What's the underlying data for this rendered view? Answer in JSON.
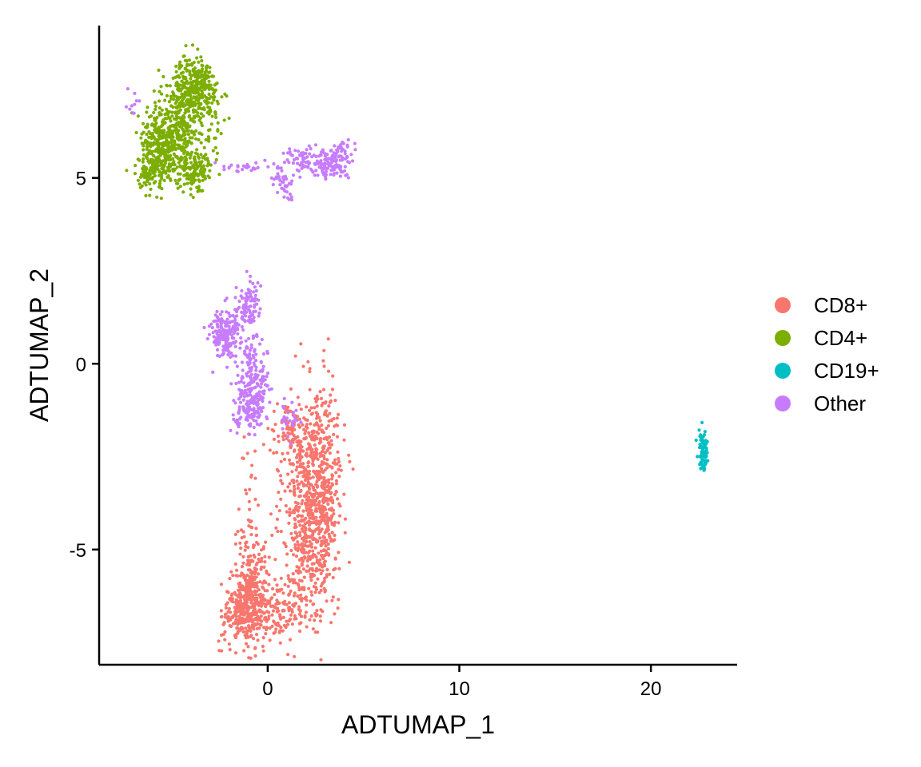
{
  "chart_data": {
    "type": "scatter",
    "title": "",
    "xlabel": "ADTUMAP_1",
    "ylabel": "ADTUMAP_2",
    "xlim": [
      -8.8,
      24.5
    ],
    "ylim": [
      -8.1,
      9.1
    ],
    "x_ticks": [
      0,
      10,
      20
    ],
    "y_ticks": [
      -5,
      0,
      5
    ],
    "x_tick_labels": [
      "0",
      "10",
      "20"
    ],
    "y_tick_labels": [
      "-5",
      "0",
      "5"
    ],
    "grid": false,
    "legend_position": "right",
    "series": [
      {
        "name": "CD8+",
        "color": "#F8766D",
        "clusters": [
          {
            "cx": 2.2,
            "cy": -4.0,
            "sx": 0.7,
            "sy": 1.5,
            "n": 650
          },
          {
            "cx": 3.0,
            "cy": -3.0,
            "sx": 0.45,
            "sy": 1.3,
            "n": 250
          },
          {
            "cx": -1.2,
            "cy": -6.7,
            "sx": 0.55,
            "sy": 0.45,
            "n": 300
          },
          {
            "cx": -0.8,
            "cy": -5.8,
            "sx": 0.45,
            "sy": 0.6,
            "n": 160
          },
          {
            "cx": 0.6,
            "cy": -6.6,
            "sx": 0.8,
            "sy": 0.4,
            "n": 130
          },
          {
            "cx": 1.2,
            "cy": -2.0,
            "sx": 0.45,
            "sy": 0.4,
            "n": 90
          },
          {
            "cx": -1.0,
            "cy": -4.0,
            "sx": 0.25,
            "sy": 1.3,
            "n": 40
          }
        ]
      },
      {
        "name": "CD4+",
        "color": "#7CAE00",
        "clusters": [
          {
            "cx": -5.6,
            "cy": 5.8,
            "sx": 0.55,
            "sy": 0.6,
            "n": 320
          },
          {
            "cx": -4.2,
            "cy": 7.3,
            "sx": 0.55,
            "sy": 0.45,
            "n": 270
          },
          {
            "cx": -3.2,
            "cy": 7.5,
            "sx": 0.3,
            "sy": 0.35,
            "n": 90
          },
          {
            "cx": -4.5,
            "cy": 6.2,
            "sx": 0.45,
            "sy": 0.5,
            "n": 170
          },
          {
            "cx": -3.7,
            "cy": 5.2,
            "sx": 0.45,
            "sy": 0.3,
            "n": 140
          },
          {
            "cx": -6.3,
            "cy": 5.2,
            "sx": 0.3,
            "sy": 0.3,
            "n": 70
          },
          {
            "cx": -2.8,
            "cy": 6.8,
            "sx": 0.3,
            "sy": 0.4,
            "n": 30
          }
        ]
      },
      {
        "name": "CD19+",
        "color": "#00BFC4",
        "clusters": [
          {
            "cx": 22.7,
            "cy": -2.3,
            "sx": 0.12,
            "sy": 0.28,
            "n": 80
          }
        ]
      },
      {
        "name": "Other",
        "color": "#C77CFF",
        "clusters": [
          {
            "cx": -2.2,
            "cy": 0.8,
            "sx": 0.4,
            "sy": 0.35,
            "n": 170
          },
          {
            "cx": -1.0,
            "cy": 1.6,
            "sx": 0.3,
            "sy": 0.35,
            "n": 90
          },
          {
            "cx": -0.8,
            "cy": -0.7,
            "sx": 0.4,
            "sy": 0.45,
            "n": 160
          },
          {
            "cx": -1.1,
            "cy": -1.3,
            "sx": 0.45,
            "sy": 0.25,
            "n": 70
          },
          {
            "cx": -0.8,
            "cy": 0.3,
            "sx": 0.25,
            "sy": 0.3,
            "n": 40
          },
          {
            "cx": 1.2,
            "cy": -1.5,
            "sx": 0.25,
            "sy": 0.25,
            "n": 25
          },
          {
            "cx": 3.3,
            "cy": 5.4,
            "sx": 0.6,
            "sy": 0.2,
            "n": 140
          },
          {
            "cx": 1.8,
            "cy": 5.5,
            "sx": 0.35,
            "sy": 0.2,
            "n": 50
          },
          {
            "cx": 0.8,
            "cy": 4.9,
            "sx": 0.35,
            "sy": 0.2,
            "n": 40
          },
          {
            "cx": -1.0,
            "cy": 5.3,
            "sx": 0.7,
            "sy": 0.08,
            "n": 25
          },
          {
            "cx": -7.0,
            "cy": 7.1,
            "sx": 0.2,
            "sy": 0.2,
            "n": 10
          },
          {
            "cx": 4.0,
            "cy": 5.8,
            "sx": 0.25,
            "sy": 0.1,
            "n": 10
          }
        ]
      }
    ]
  }
}
